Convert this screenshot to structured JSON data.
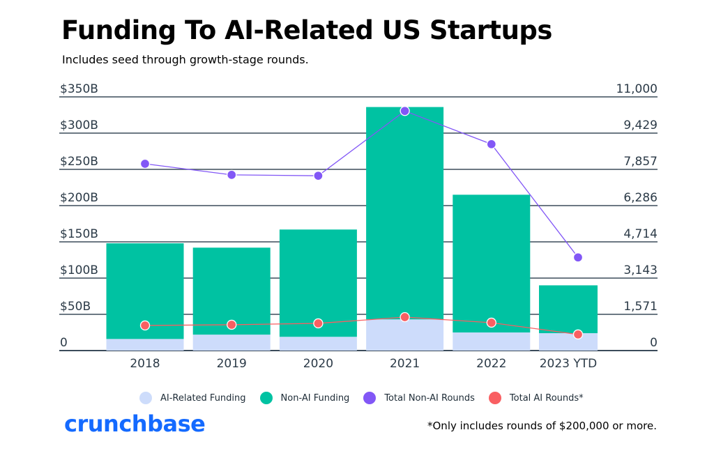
{
  "title": "Funding To AI-Related US Startups",
  "subtitle": "Includes seed through growth-stage rounds.",
  "brand": "crunchbase",
  "footnote": "*Only includes rounds of $200,000 or more.",
  "colors": {
    "ai_funding": "#cddcfb",
    "non_ai_funding": "#00c2a2",
    "non_ai_rounds": "#8257f6",
    "ai_rounds": "#f95f62",
    "grid": "#3b4b5a",
    "brand": "#146aff"
  },
  "chart_data": {
    "type": "bar",
    "stacked": true,
    "categories": [
      "2018",
      "2019",
      "2020",
      "2021",
      "2022",
      "2023 YTD"
    ],
    "left_axis": {
      "ylim": [
        0,
        350
      ],
      "unit": "B USD",
      "tick_labels": [
        "0",
        "$50B",
        "$100B",
        "$150B",
        "$200B",
        "$250B",
        "$300B",
        "$350B"
      ]
    },
    "right_axis": {
      "ylim": [
        0,
        11000
      ],
      "tick_labels": [
        "0",
        "1,571",
        "3,143",
        "4,714",
        "6,286",
        "7,857",
        "9,429",
        "11,000"
      ]
    },
    "grid": true,
    "legend_position": "bottom",
    "series": [
      {
        "name": "AI-Related Funding",
        "type": "bar",
        "axis": "left",
        "values": [
          16,
          22,
          19,
          43,
          25,
          24
        ]
      },
      {
        "name": "Non-AI Funding",
        "type": "bar",
        "axis": "left",
        "values": [
          132,
          120,
          148,
          293,
          190,
          66
        ]
      },
      {
        "name": "Total Non-AI Rounds",
        "type": "line",
        "axis": "right",
        "values": [
          8100,
          7620,
          7580,
          10390,
          8950,
          4040
        ]
      },
      {
        "name": "Total AI Rounds*",
        "type": "line",
        "axis": "right",
        "values": [
          1090,
          1120,
          1180,
          1450,
          1210,
          700
        ]
      }
    ]
  }
}
